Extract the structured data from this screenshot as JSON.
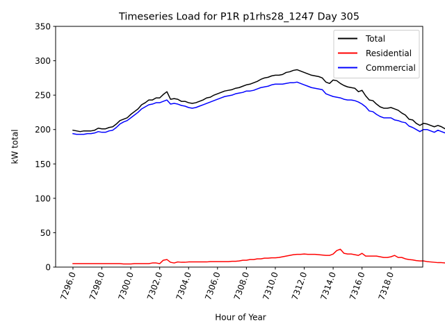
{
  "chart_data": {
    "type": "line",
    "title": "Timeseries Load for P1R p1rhs28_1247  Day 305",
    "xlabel": "Hour of Year",
    "ylabel": "kW total",
    "xlim": [
      7294.8,
      7320.2
    ],
    "ylim": [
      0,
      350
    ],
    "x_ticks": [
      7296,
      7298,
      7300,
      7302,
      7304,
      7306,
      7308,
      7310,
      7312,
      7314,
      7316,
      7318
    ],
    "x_tick_labels": [
      "7296.0",
      "7298.0",
      "7300.0",
      "7302.0",
      "7304.0",
      "7306.0",
      "7308.0",
      "7310.0",
      "7312.0",
      "7314.0",
      "7316.0",
      "7318.0"
    ],
    "y_ticks": [
      0,
      50,
      100,
      150,
      200,
      250,
      300,
      350
    ],
    "y_tick_labels": [
      "0",
      "50",
      "100",
      "150",
      "200",
      "250",
      "300",
      "350"
    ],
    "legend_position": "top-right",
    "grid": false,
    "x_start": 7296,
    "x_step": 0.25,
    "series": [
      {
        "name": "Total",
        "color": "#000000",
        "values": [
          199,
          198,
          197,
          198,
          198,
          198,
          199,
          202,
          201,
          201,
          203,
          204,
          208,
          213,
          215,
          217,
          222,
          226,
          230,
          236,
          239,
          243,
          243,
          246,
          246,
          251,
          255,
          244,
          245,
          244,
          241,
          241,
          239,
          238,
          239,
          241,
          243,
          246,
          247,
          250,
          252,
          254,
          256,
          257,
          258,
          260,
          261,
          263,
          265,
          266,
          268,
          270,
          273,
          275,
          276,
          278,
          279,
          279,
          280,
          283,
          284,
          286,
          287,
          285,
          283,
          281,
          279,
          278,
          277,
          275,
          269,
          267,
          272,
          271,
          267,
          264,
          262,
          261,
          260,
          255,
          257,
          249,
          243,
          242,
          237,
          233,
          231,
          231,
          232,
          230,
          228,
          224,
          221,
          215,
          214,
          209,
          206,
          209,
          208,
          206,
          204,
          206,
          204,
          201
        ]
      },
      {
        "name": "Residential",
        "color": "#ff0000",
        "values": [
          5,
          5,
          5,
          5,
          5,
          5,
          5,
          5,
          5,
          5,
          5,
          5,
          5,
          5,
          4.5,
          4.5,
          4.5,
          5,
          5,
          5,
          5,
          5,
          6,
          6,
          5,
          10,
          11,
          7,
          6,
          7.5,
          7,
          7,
          7.5,
          7.5,
          7.5,
          7.5,
          7.5,
          7.5,
          8,
          8,
          8,
          8,
          8,
          8,
          8.5,
          8.5,
          9,
          10,
          10,
          11,
          11,
          12,
          12,
          13,
          13,
          13.5,
          13.5,
          14,
          15,
          16,
          17,
          18,
          18.5,
          18.5,
          19,
          18.5,
          18.5,
          18.5,
          18,
          17.5,
          17,
          17,
          19,
          24,
          26,
          20,
          19,
          19,
          18,
          17,
          20,
          16,
          16,
          16,
          16,
          15,
          14,
          14,
          15,
          17,
          14,
          14,
          12,
          11,
          10.5,
          9.5,
          9,
          9,
          8,
          7.5,
          7,
          6.5,
          6.5,
          6
        ]
      },
      {
        "name": "Commercial",
        "color": "#0000ff",
        "values": [
          194,
          193,
          193,
          193,
          194,
          194,
          195,
          197,
          196,
          196,
          198,
          199,
          203,
          208,
          211,
          213,
          217,
          221,
          225,
          230,
          233,
          236,
          237,
          239,
          239,
          241,
          243,
          237,
          238,
          237,
          235,
          234,
          232,
          231,
          232,
          234,
          236,
          238,
          240,
          242,
          244,
          246,
          248,
          249,
          250,
          252,
          253,
          254,
          256,
          256,
          257,
          259,
          261,
          262,
          263,
          265,
          266,
          266,
          266,
          267,
          268,
          268,
          269,
          267,
          265,
          263,
          261,
          260,
          259,
          258,
          252,
          250,
          248,
          247,
          246,
          244,
          243,
          243,
          242,
          240,
          237,
          233,
          227,
          226,
          222,
          219,
          217,
          217,
          217,
          214,
          213,
          211,
          210,
          205,
          203,
          200,
          197,
          200,
          200,
          198,
          196,
          199,
          197,
          195
        ]
      }
    ]
  }
}
